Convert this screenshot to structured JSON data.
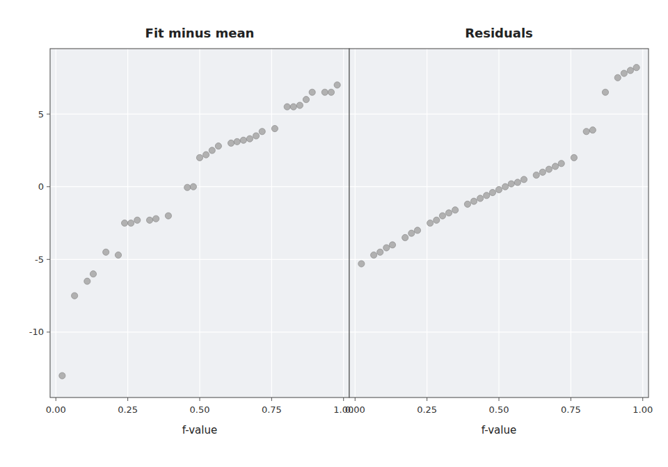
{
  "chart_data": [
    {
      "type": "scatter",
      "title": "Fit minus mean",
      "xlabel": "f-value",
      "color": "#aaaaaa",
      "x": [
        0.022,
        0.065,
        0.109,
        0.13,
        0.174,
        0.217,
        0.239,
        0.261,
        0.283,
        0.326,
        0.348,
        0.391,
        0.457,
        0.478,
        0.5,
        0.522,
        0.543,
        0.565,
        0.609,
        0.63,
        0.652,
        0.674,
        0.696,
        0.717,
        0.761,
        0.804,
        0.826,
        0.848,
        0.87,
        0.891,
        0.935,
        0.957,
        0.978
      ],
      "values": [
        -13.0,
        -7.5,
        -6.5,
        -6.0,
        -4.5,
        -4.7,
        -2.5,
        -2.5,
        -2.3,
        -2.3,
        -2.2,
        -2.0,
        -0.05,
        0.0,
        2.0,
        2.2,
        2.5,
        2.8,
        3.0,
        3.1,
        3.2,
        3.3,
        3.5,
        3.8,
        4.0,
        5.5,
        5.5,
        5.6,
        6.0,
        6.5,
        6.5,
        6.5,
        7.0
      ],
      "xlim": [
        -0.02,
        1.02
      ],
      "ylim": [
        -14.5,
        9.5
      ],
      "xticks": [
        {
          "value": 0.0,
          "label": "0.00"
        },
        {
          "value": 0.25,
          "label": "0.25"
        },
        {
          "value": 0.5,
          "label": "0.50"
        },
        {
          "value": 0.75,
          "label": "0.75"
        },
        {
          "value": 1.0,
          "label": "1.00"
        }
      ],
      "yticks": [
        -10,
        -5,
        0,
        5
      ],
      "grid": true
    },
    {
      "type": "scatter",
      "title": "Residuals",
      "xlabel": "f-value",
      "color": "#aaaaaa",
      "x": [
        0.022,
        0.065,
        0.087,
        0.109,
        0.13,
        0.174,
        0.196,
        0.217,
        0.261,
        0.283,
        0.304,
        0.326,
        0.348,
        0.391,
        0.413,
        0.435,
        0.457,
        0.478,
        0.5,
        0.522,
        0.543,
        0.565,
        0.587,
        0.63,
        0.652,
        0.674,
        0.696,
        0.717,
        0.761,
        0.804,
        0.826,
        0.87,
        0.913,
        0.935,
        0.957,
        0.978
      ],
      "values": [
        -5.3,
        -4.7,
        -4.5,
        -4.2,
        -4.0,
        -3.5,
        -3.2,
        -3.0,
        -2.5,
        -2.3,
        -2.0,
        -1.8,
        -1.6,
        -1.2,
        -1.0,
        -0.8,
        -0.6,
        -0.4,
        -0.2,
        0.0,
        0.2,
        0.3,
        0.5,
        0.8,
        1.0,
        1.2,
        1.4,
        1.6,
        2.0,
        3.8,
        3.9,
        6.5,
        7.5,
        7.8,
        8.0,
        8.2
      ],
      "xlim": [
        -0.02,
        1.02
      ],
      "ylim": [
        -14.5,
        9.5
      ],
      "xticks": [
        {
          "value": 0.0,
          "label": "0.00"
        },
        {
          "value": 0.25,
          "label": "0.25"
        },
        {
          "value": 0.5,
          "label": "0.50"
        },
        {
          "value": 0.75,
          "label": "0.75"
        },
        {
          "value": 1.0,
          "label": "1.00"
        }
      ],
      "yticks": [
        -10,
        -5,
        0,
        5
      ],
      "grid": true,
      "tick_labels": "x"
    }
  ]
}
